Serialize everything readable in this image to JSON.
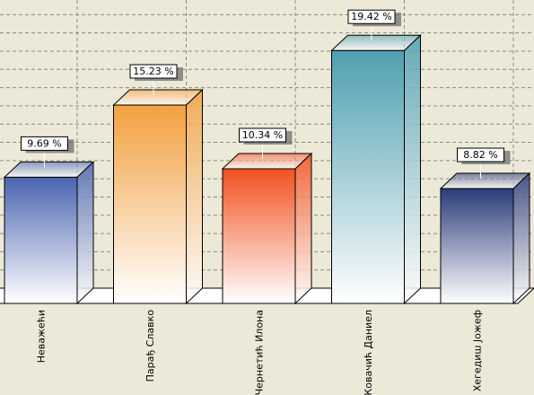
{
  "chart_data": {
    "type": "bar3d",
    "categories": [
      "Неважећи",
      "Парађ Славко",
      "Чернетић Илона",
      "Ковачић Даниел",
      "Хегедиш Јожеф"
    ],
    "series": [
      {
        "name": null,
        "colors": [
          "#4a64b0",
          "#f2a040",
          "#f25020",
          "#4f9fb0",
          "#2a3c78"
        ],
        "values": [
          9.69,
          15.23,
          10.34,
          19.42,
          8.82
        ],
        "value_labels": [
          "9.69 %",
          "15.23 %",
          "10.34 %",
          "19.42 %",
          "8.82 %"
        ]
      }
    ],
    "ylim": [
      0,
      22.4
    ],
    "yticks": [
      0,
      1.4,
      2.8,
      4.2,
      5.6,
      7,
      8.4,
      9.8,
      11.2,
      12.6,
      14,
      15.4,
      16.8,
      18.2,
      19.6,
      21,
      22.4
    ],
    "grid": true
  }
}
